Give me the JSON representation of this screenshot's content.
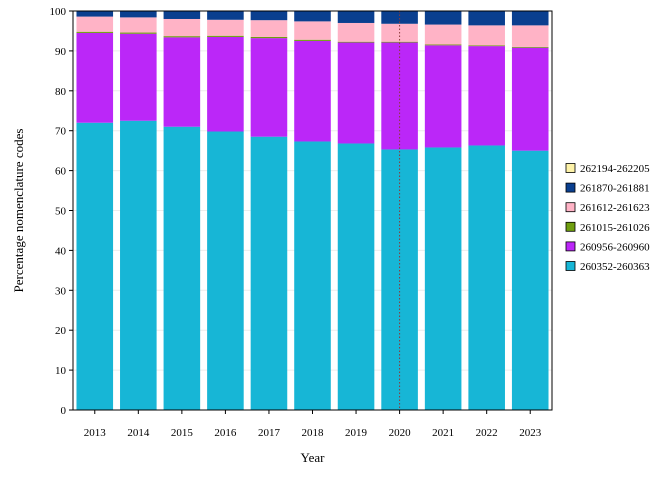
{
  "chart_data": {
    "type": "bar",
    "stacked": true,
    "xlabel": "Year",
    "ylabel": "Percentage nomenclature codes",
    "ylim": [
      0,
      100
    ],
    "yticks": [
      0,
      10,
      20,
      30,
      40,
      50,
      60,
      70,
      80,
      90,
      100
    ],
    "grid": "horizontal",
    "legend_position": "right",
    "reference_line": {
      "x": "2020",
      "style": "dotted",
      "color": "#8b3a3a"
    },
    "categories": [
      "2013",
      "2014",
      "2015",
      "2016",
      "2017",
      "2018",
      "2019",
      "2020",
      "2021",
      "2022",
      "2023"
    ],
    "series": [
      {
        "name": "260352-260363",
        "color": "#17b6d6",
        "values": [
          72.0,
          72.5,
          71.0,
          69.8,
          68.5,
          67.3,
          66.8,
          65.3,
          65.8,
          66.3,
          65.0
        ]
      },
      {
        "name": "260956-260960",
        "color": "#bb27f8",
        "values": [
          22.5,
          21.8,
          22.4,
          23.7,
          24.7,
          25.2,
          25.3,
          26.8,
          25.6,
          24.9,
          25.8
        ]
      },
      {
        "name": "261015-261026",
        "color": "#6f9e0f",
        "values": [
          0.3,
          0.3,
          0.3,
          0.3,
          0.3,
          0.3,
          0.2,
          0.2,
          0.2,
          0.2,
          0.2
        ]
      },
      {
        "name": "261612-261623",
        "color": "#ffb3c6",
        "values": [
          3.8,
          3.8,
          4.3,
          4.0,
          4.2,
          4.6,
          4.7,
          4.5,
          5.0,
          5.0,
          5.4
        ]
      },
      {
        "name": "261870-261881",
        "color": "#0a3f8f",
        "values": [
          1.4,
          1.6,
          2.0,
          2.2,
          2.3,
          2.6,
          3.0,
          3.2,
          3.4,
          3.6,
          3.6
        ]
      },
      {
        "name": "262194-262205",
        "color": "#fdf2a8",
        "values": [
          0,
          0,
          0,
          0,
          0,
          0,
          0,
          0,
          0,
          0,
          0
        ]
      }
    ]
  }
}
